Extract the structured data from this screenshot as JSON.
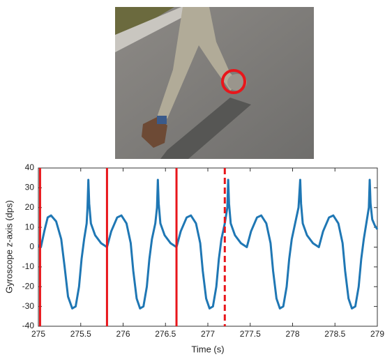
{
  "chart_data": {
    "type": "line",
    "xlabel": "Time (s)",
    "ylabel": "Gyroscope z-axis (dps)",
    "xlim": [
      275,
      279
    ],
    "xticks": [
      275,
      275.5,
      276,
      276.5,
      277,
      277.5,
      278,
      278.5,
      279
    ],
    "ylim": [
      -40,
      40
    ],
    "yticks": [
      -40,
      -30,
      -20,
      -10,
      0,
      10,
      20,
      30,
      40
    ],
    "x": [
      275.0,
      275.03,
      275.07,
      275.11,
      275.15,
      275.21,
      275.27,
      275.31,
      275.35,
      275.4,
      275.44,
      275.48,
      275.51,
      275.54,
      275.57,
      275.58,
      275.59,
      275.6,
      275.62,
      275.67,
      275.74,
      275.81,
      275.86,
      275.93,
      275.98,
      276.04,
      276.09,
      276.12,
      276.16,
      276.2,
      276.24,
      276.28,
      276.31,
      276.34,
      276.38,
      276.4,
      276.41,
      276.42,
      276.44,
      276.49,
      276.56,
      276.63,
      276.68,
      276.75,
      276.8,
      276.86,
      276.91,
      276.94,
      276.98,
      277.02,
      277.06,
      277.1,
      277.13,
      277.16,
      277.2,
      277.23,
      277.24,
      277.25,
      277.27,
      277.32,
      277.39,
      277.46,
      277.51,
      277.58,
      277.63,
      277.69,
      277.74,
      277.77,
      277.81,
      277.85,
      277.89,
      277.93,
      277.96,
      277.99,
      278.03,
      278.07,
      278.09,
      278.1,
      278.12,
      278.17,
      278.24,
      278.31,
      278.36,
      278.43,
      278.48,
      278.54,
      278.59,
      278.62,
      278.66,
      278.7,
      278.74,
      278.78,
      278.81,
      278.84,
      278.87,
      278.9,
      278.91,
      278.92,
      278.94,
      278.97,
      279.0
    ],
    "series": [
      {
        "color": "#1f77b4",
        "values": [
          1,
          0,
          8,
          15,
          16,
          13,
          4,
          -10,
          -25,
          -31,
          -30,
          -20,
          -6,
          4,
          12,
          20,
          34,
          22,
          12,
          6,
          2,
          0,
          8,
          15,
          16,
          12,
          2,
          -12,
          -26,
          -31,
          -30,
          -20,
          -6,
          4,
          12,
          20,
          34,
          22,
          12,
          6,
          2,
          0,
          8,
          15,
          16,
          12,
          2,
          -12,
          -26,
          -31,
          -30,
          -20,
          -6,
          4,
          12,
          20,
          34,
          22,
          12,
          6,
          2,
          0,
          8,
          15,
          16,
          12,
          2,
          -12,
          -26,
          -31,
          -30,
          -20,
          -6,
          4,
          12,
          20,
          34,
          22,
          12,
          6,
          2,
          0,
          8,
          15,
          16,
          12,
          2,
          -12,
          -26,
          -31,
          -30,
          -20,
          -6,
          4,
          12,
          20,
          34,
          22,
          14,
          11,
          9
        ]
      }
    ],
    "vlines": [
      {
        "x": 275.02,
        "style": "solid"
      },
      {
        "x": 275.81,
        "style": "solid"
      },
      {
        "x": 276.63,
        "style": "solid"
      },
      {
        "x": 277.2,
        "style": "dashed"
      }
    ],
    "vline_color": "#e8161b"
  }
}
